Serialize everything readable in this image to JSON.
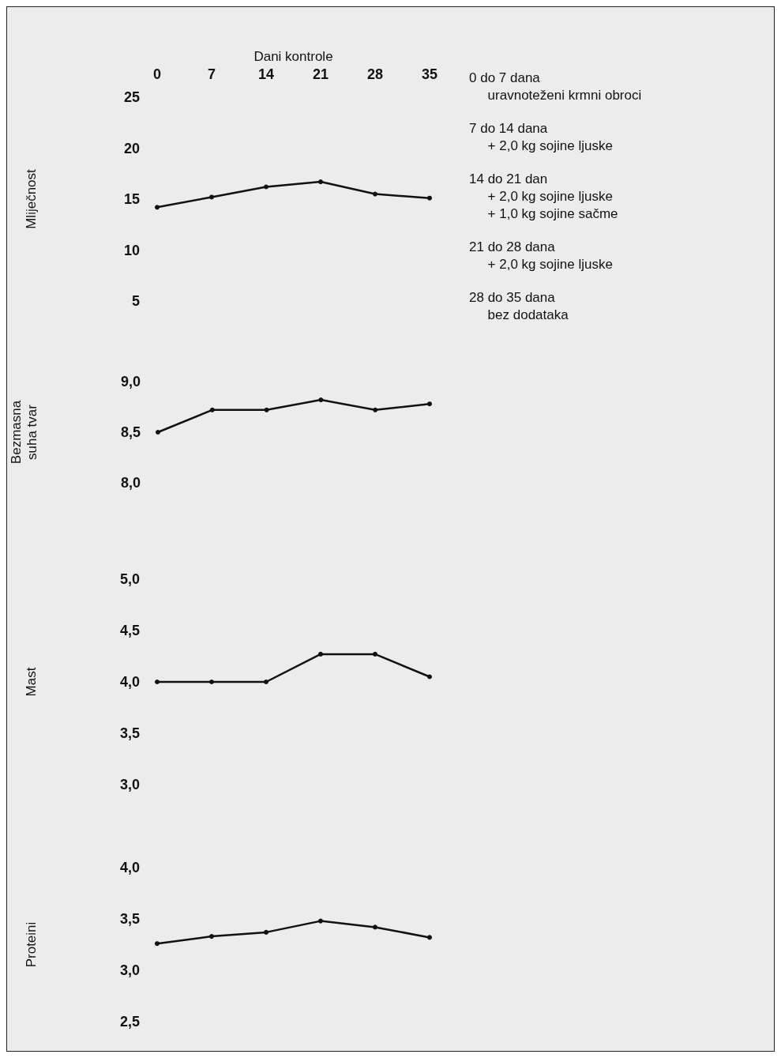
{
  "chart_data": [
    {
      "type": "line",
      "xlabel": "Dani kontrole",
      "ylabel": "Mliječnost",
      "x": [
        0,
        7,
        14,
        21,
        28,
        35
      ],
      "values": [
        14.2,
        15.2,
        16.2,
        16.7,
        15.5,
        15.1
      ],
      "color": "#111111",
      "marker": "circle",
      "xlim": [
        0,
        35
      ],
      "xticks": [
        0,
        7,
        14,
        21,
        28,
        35
      ],
      "ylim": [
        5,
        25
      ],
      "yticks": [
        5,
        10,
        15,
        20,
        25
      ],
      "annotations": [
        "0 do 7 dana\n     uravnoteženi krmni obroci",
        "7 do 14 dana\n     + 2,0 kg sojine ljuske",
        "14 do 21 dan\n     + 2,0 kg sojine ljuske\n     + 1,0 kg sojine sačme",
        "21 do 28 dana\n     + 2,0 kg sojine ljuske",
        "28 do 35 dana\n     bez dodataka"
      ]
    },
    {
      "type": "line",
      "ylabel": "Bezmasna\nsuha tvar",
      "x": [
        0,
        7,
        14,
        21,
        28,
        35
      ],
      "values": [
        8.5,
        8.72,
        8.72,
        8.82,
        8.72,
        8.78
      ],
      "color": "#111111",
      "marker": "circle",
      "xlim": [
        0,
        35
      ],
      "ylim": [
        8,
        9
      ],
      "yticks": [
        {
          "value": 8,
          "label": "8,0"
        },
        {
          "value": 8.5,
          "label": "8,5"
        },
        {
          "value": 9,
          "label": "9,0"
        }
      ],
      "tick_labels": "y"
    },
    {
      "type": "line",
      "ylabel": "Mast",
      "x": [
        0,
        7,
        14,
        21,
        28,
        35
      ],
      "values": [
        4.0,
        4.0,
        4.0,
        4.27,
        4.27,
        4.05
      ],
      "color": "#111111",
      "marker": "circle",
      "xlim": [
        0,
        35
      ],
      "ylim": [
        3,
        5
      ],
      "yticks": [
        {
          "value": 3,
          "label": "3,0"
        },
        {
          "value": 3.5,
          "label": "3,5"
        },
        {
          "value": 4,
          "label": "4,0"
        },
        {
          "value": 4.5,
          "label": "4,5"
        },
        {
          "value": 5,
          "label": "5,0"
        }
      ],
      "tick_labels": "y"
    },
    {
      "type": "line",
      "ylabel": "Proteini",
      "x": [
        0,
        7,
        14,
        21,
        28,
        35
      ],
      "values": [
        3.26,
        3.33,
        3.37,
        3.48,
        3.42,
        3.32
      ],
      "color": "#111111",
      "marker": "circle",
      "xlim": [
        0,
        35
      ],
      "ylim": [
        2.5,
        4
      ],
      "yticks": [
        {
          "value": 2.5,
          "label": "2,5"
        },
        {
          "value": 3,
          "label": "3,0"
        },
        {
          "value": 3.5,
          "label": "3,5"
        },
        {
          "value": 4,
          "label": "4,0"
        }
      ],
      "tick_labels": "y"
    }
  ]
}
